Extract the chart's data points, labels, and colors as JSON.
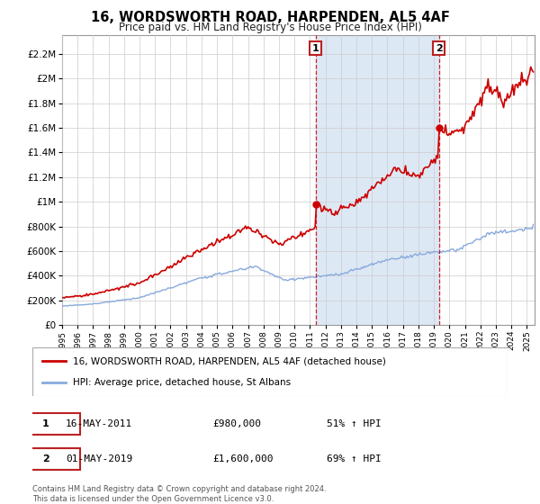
{
  "title": "16, WORDSWORTH ROAD, HARPENDEN, AL5 4AF",
  "subtitle": "Price paid vs. HM Land Registry's House Price Index (HPI)",
  "ytick_values": [
    0,
    200000,
    400000,
    600000,
    800000,
    1000000,
    1200000,
    1400000,
    1600000,
    1800000,
    2000000,
    2200000
  ],
  "ytick_labels": [
    "£0",
    "£200K",
    "£400K",
    "£600K",
    "£800K",
    "£1M",
    "£1.2M",
    "£1.4M",
    "£1.6M",
    "£1.8M",
    "£2M",
    "£2.2M"
  ],
  "ylim": [
    0,
    2350000
  ],
  "xlim": [
    1995.0,
    2025.5
  ],
  "xtick_years": [
    1995,
    1996,
    1997,
    1998,
    1999,
    2000,
    2001,
    2002,
    2003,
    2004,
    2005,
    2006,
    2007,
    2008,
    2009,
    2010,
    2011,
    2012,
    2013,
    2014,
    2015,
    2016,
    2017,
    2018,
    2019,
    2020,
    2021,
    2022,
    2023,
    2024,
    2025
  ],
  "sale1_x": 2011.37,
  "sale1_y": 980000,
  "sale1_label": "1",
  "sale1_date": "16-MAY-2011",
  "sale1_price": "£980,000",
  "sale1_hpi": "51% ↑ HPI",
  "sale2_x": 2019.33,
  "sale2_y": 1600000,
  "sale2_label": "2",
  "sale2_date": "01-MAY-2019",
  "sale2_price": "£1,600,000",
  "sale2_hpi": "69% ↑ HPI",
  "line1_color": "#cc0000",
  "line2_color": "#88aadd",
  "shade_color": "#dde8f5",
  "grid_color": "#cccccc",
  "bg_color": "#ffffff",
  "plot_bg": "#ffffff",
  "legend1_label": "16, WORDSWORTH ROAD, HARPENDEN, AL5 4AF (detached house)",
  "legend2_label": "HPI: Average price, detached house, St Albans",
  "footer": "Contains HM Land Registry data © Crown copyright and database right 2024.\nThis data is licensed under the Open Government Licence v3.0."
}
